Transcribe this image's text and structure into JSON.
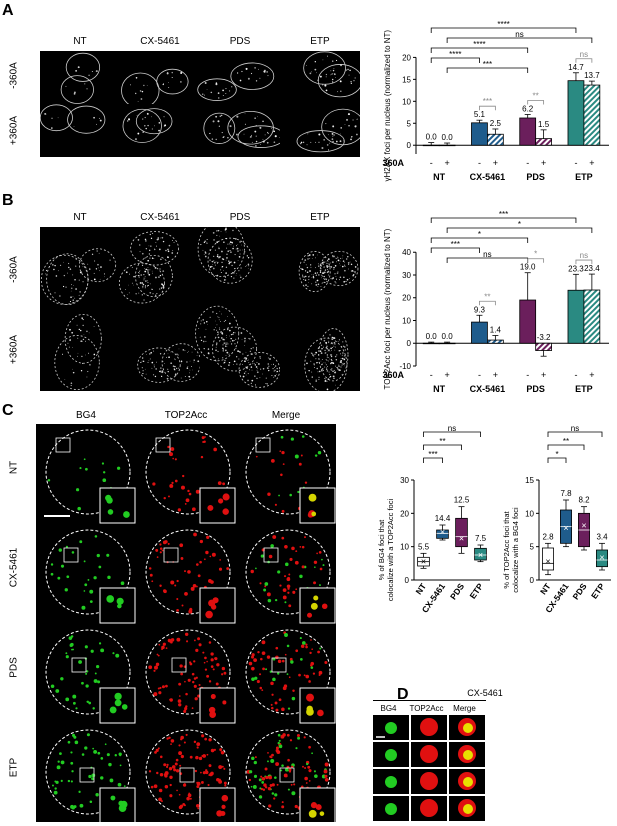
{
  "panel_labels": {
    "a": "A",
    "b": "B",
    "c": "C",
    "d": "D"
  },
  "panel_a": {
    "col_headers": [
      "NT",
      "CX-5461",
      "PDS",
      "ETP"
    ],
    "row_labels": [
      "-360A",
      "+360A"
    ]
  },
  "panel_b": {
    "col_headers": [
      "NT",
      "CX-5461",
      "PDS",
      "ETP"
    ],
    "row_labels": [
      "-360A",
      "+360A"
    ]
  },
  "panel_c": {
    "col_headers": [
      "BG4",
      "TOP2Acc",
      "Merge"
    ],
    "row_labels": [
      "NT",
      "CX-5461",
      "PDS",
      "ETP"
    ]
  },
  "panel_d": {
    "title": "CX-5461",
    "col_headers": [
      "BG4",
      "TOP2Acc",
      "Merge"
    ],
    "rows": 4
  },
  "colors": {
    "nt": "#ffffff",
    "cx5461": "#1f5c8c",
    "pds": "#6b1f5c",
    "etp": "#2a8a82",
    "sig_grey": "#888888",
    "green": "#22cc22",
    "red": "#e01010"
  },
  "chart_data": [
    {
      "id": "A",
      "type": "bar",
      "ylabel": "γH2AX foci per nucleus (normalized to NT)",
      "ylim": [
        -2,
        20
      ],
      "yticks": [
        0,
        5,
        10,
        15,
        20
      ],
      "groups": [
        "NT",
        "CX-5461",
        "PDS",
        "ETP"
      ],
      "treatment_label": "360A",
      "treatment_ticks": [
        "-",
        "+"
      ],
      "series": [
        {
          "name": "-",
          "values": [
            0.0,
            5.1,
            6.2,
            14.7
          ],
          "err": [
            0.6,
            0.6,
            0.8,
            1.8
          ]
        },
        {
          "name": "+",
          "values": [
            0.0,
            2.5,
            1.5,
            13.7
          ],
          "err": [
            0.5,
            1.2,
            2.0,
            0.9
          ]
        }
      ],
      "value_labels": [
        [
          "0.0",
          "5.1",
          "6.2",
          "14.7"
        ],
        [
          "0.0",
          "2.5",
          "1.5",
          "13.7"
        ]
      ],
      "significance": [
        {
          "text": "****",
          "from": "NT-",
          "to": "ETP-",
          "color": "black"
        },
        {
          "text": "ns",
          "from": "NT+",
          "to": "ETP+",
          "color": "black"
        },
        {
          "text": "****",
          "from": "NT-",
          "to": "PDS-",
          "color": "black"
        },
        {
          "text": "****",
          "from": "NT-",
          "to": "CX-5461-",
          "color": "black"
        },
        {
          "text": "***",
          "from": "NT+",
          "to": "PDS-",
          "color": "black"
        },
        {
          "text": "***",
          "from": "CX-5461-",
          "to": "CX-5461+",
          "color": "grey"
        },
        {
          "text": "**",
          "from": "PDS-",
          "to": "PDS+",
          "color": "grey"
        },
        {
          "text": "ns",
          "from": "ETP-",
          "to": "ETP+",
          "color": "grey"
        }
      ]
    },
    {
      "id": "B",
      "type": "bar",
      "ylabel": "TOP2Acc foci per nucleus (normalized to NT)",
      "ylim": [
        -10,
        40
      ],
      "yticks": [
        -10,
        0,
        10,
        20,
        30,
        40
      ],
      "groups": [
        "NT",
        "CX-5461",
        "PDS",
        "ETP"
      ],
      "treatment_label": "360A",
      "treatment_ticks": [
        "-",
        "+"
      ],
      "series": [
        {
          "name": "-",
          "values": [
            0.0,
            9.3,
            19.0,
            23.3
          ],
          "err": [
            0.5,
            3.0,
            12.0,
            7.0
          ]
        },
        {
          "name": "+",
          "values": [
            0.0,
            1.4,
            -3.2,
            23.4
          ],
          "err": [
            0.5,
            2.0,
            2.5,
            7.0
          ]
        }
      ],
      "value_labels": [
        [
          "0.0",
          "9.3",
          "19.0",
          "23.3"
        ],
        [
          "0.0",
          "1.4",
          "-3.2",
          "23.4"
        ]
      ],
      "significance": [
        {
          "text": "***",
          "from": "NT-",
          "to": "ETP-",
          "color": "black"
        },
        {
          "text": "*",
          "from": "NT+",
          "to": "ETP+",
          "color": "black"
        },
        {
          "text": "*",
          "from": "NT-",
          "to": "PDS-",
          "color": "black"
        },
        {
          "text": "***",
          "from": "NT-",
          "to": "CX-5461-",
          "color": "black"
        },
        {
          "text": "ns",
          "from": "NT+",
          "to": "PDS-",
          "color": "black"
        },
        {
          "text": "**",
          "from": "CX-5461-",
          "to": "CX-5461+",
          "color": "grey"
        },
        {
          "text": "*",
          "from": "PDS-",
          "to": "PDS+",
          "color": "grey"
        },
        {
          "text": "ns",
          "from": "ETP-",
          "to": "ETP+",
          "color": "grey"
        }
      ]
    },
    {
      "id": "C1",
      "type": "box",
      "ylabel": "% of BG4 foci that colocalize with a TOP2Acc foci",
      "ylim": [
        0,
        30
      ],
      "yticks": [
        0,
        10,
        20,
        30
      ],
      "categories": [
        "NT",
        "CX-5461",
        "PDS",
        "ETP"
      ],
      "boxes": [
        {
          "min": 3.5,
          "q1": 4.2,
          "median": 5.5,
          "q3": 6.8,
          "max": 8.0,
          "mean": 5.5
        },
        {
          "min": 12.0,
          "q1": 12.5,
          "median": 14.0,
          "q3": 15.0,
          "max": 16.5,
          "mean": 14.4
        },
        {
          "min": 8.0,
          "q1": 10.0,
          "median": 13.0,
          "q3": 18.5,
          "max": 22.0,
          "mean": 12.5
        },
        {
          "min": 5.5,
          "q1": 6.0,
          "median": 7.5,
          "q3": 9.5,
          "max": 10.5,
          "mean": 7.5
        }
      ],
      "value_labels": [
        "5.5",
        "14.4",
        "12.5",
        "7.5"
      ],
      "significance": [
        {
          "text": "ns",
          "from": "NT",
          "to": "ETP"
        },
        {
          "text": "**",
          "from": "NT",
          "to": "PDS"
        },
        {
          "text": "***",
          "from": "NT",
          "to": "CX-5461"
        }
      ]
    },
    {
      "id": "C2",
      "type": "box",
      "ylabel": "% of TOP2Acc foci that colocalize with a BG4 foci",
      "ylim": [
        0,
        15
      ],
      "yticks": [
        0,
        5,
        10,
        15
      ],
      "categories": [
        "NT",
        "CX-5461",
        "PDS",
        "ETP"
      ],
      "boxes": [
        {
          "min": 0.8,
          "q1": 1.5,
          "median": 2.5,
          "q3": 4.8,
          "max": 5.5,
          "mean": 2.8
        },
        {
          "min": 5.0,
          "q1": 5.5,
          "median": 8.0,
          "q3": 10.5,
          "max": 12.0,
          "mean": 7.8
        },
        {
          "min": 4.5,
          "q1": 5.0,
          "median": 7.5,
          "q3": 10.0,
          "max": 11.0,
          "mean": 8.2
        },
        {
          "min": 1.5,
          "q1": 2.0,
          "median": 3.0,
          "q3": 4.5,
          "max": 5.5,
          "mean": 3.4
        }
      ],
      "value_labels": [
        "2.8",
        "7.8",
        "8.2",
        "3.4"
      ],
      "significance": [
        {
          "text": "ns",
          "from": "NT",
          "to": "ETP"
        },
        {
          "text": "**",
          "from": "NT",
          "to": "PDS"
        },
        {
          "text": "*",
          "from": "NT",
          "to": "CX-5461"
        }
      ]
    }
  ]
}
